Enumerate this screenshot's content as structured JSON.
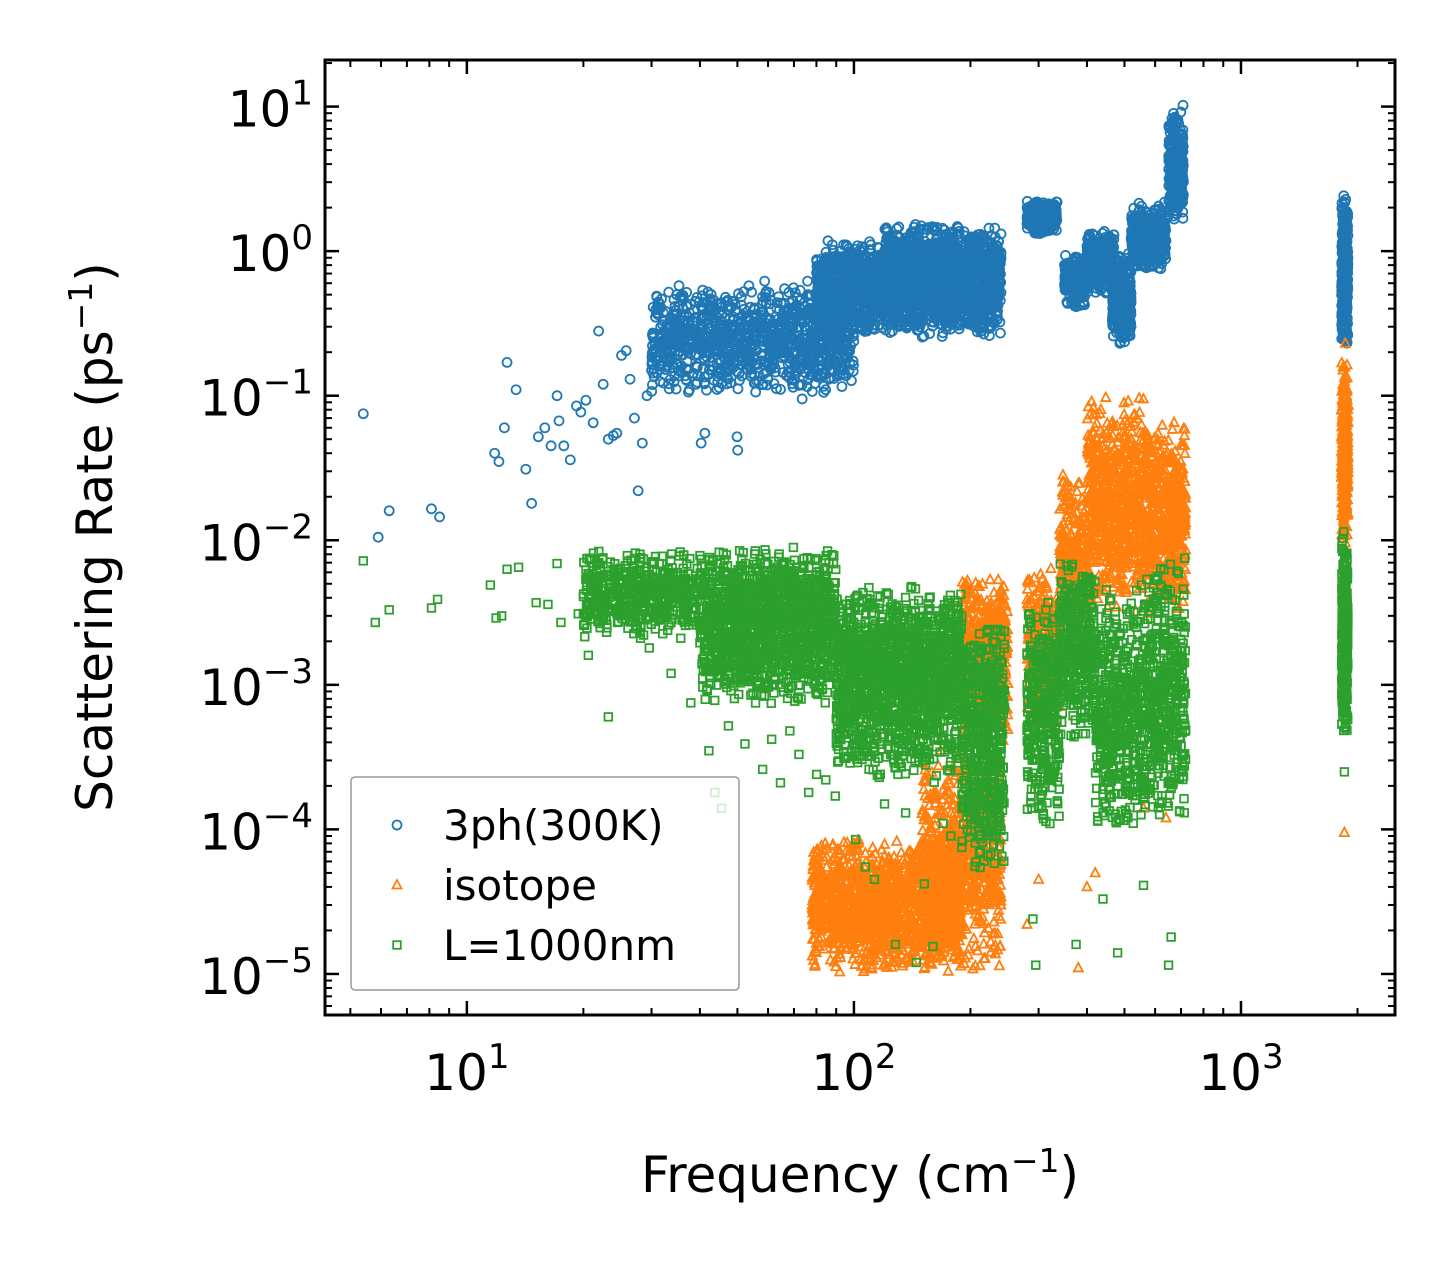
{
  "chart_data": {
    "type": "scatter",
    "xscale": "log",
    "yscale": "log",
    "xlim": [
      4.3,
      2500
    ],
    "ylim": [
      5.2e-06,
      21
    ],
    "xlabel": {
      "base": "Frequency (cm",
      "sup": "−1",
      "tail": ")"
    },
    "ylabel": {
      "base": "Scattering Rate (ps",
      "sup": "−1",
      "tail": ")"
    },
    "xticks": [
      {
        "value": 10,
        "base": "10",
        "exp": "1"
      },
      {
        "value": 100,
        "base": "10",
        "exp": "2"
      },
      {
        "value": 1000,
        "base": "10",
        "exp": "3"
      }
    ],
    "yticks": [
      {
        "value": 10,
        "base": "10",
        "exp": "1"
      },
      {
        "value": 1,
        "base": "10",
        "exp": "0"
      },
      {
        "value": 0.1,
        "base": "10",
        "exp": "−1"
      },
      {
        "value": 0.01,
        "base": "10",
        "exp": "−2"
      },
      {
        "value": 0.001,
        "base": "10",
        "exp": "−3"
      },
      {
        "value": 0.0001,
        "base": "10",
        "exp": "−4"
      },
      {
        "value": 1e-05,
        "base": "10",
        "exp": "−5"
      }
    ],
    "legend_position": "lower-left",
    "series": [
      {
        "name": "3ph(300K)",
        "marker": "circle",
        "color": "#1f77b4",
        "points": [
          [
            5.4,
            0.075
          ],
          [
            5.9,
            0.0105
          ],
          [
            6.3,
            0.016
          ],
          [
            8.1,
            0.0165
          ],
          [
            8.5,
            0.0145
          ],
          [
            11.8,
            0.04
          ],
          [
            12.1,
            0.035
          ],
          [
            12.5,
            0.06
          ],
          [
            12.7,
            0.17
          ],
          [
            13.4,
            0.11
          ],
          [
            14.2,
            0.031
          ],
          [
            14.7,
            0.018
          ],
          [
            15.3,
            0.052
          ],
          [
            15.9,
            0.06
          ],
          [
            16.5,
            0.045
          ],
          [
            17.1,
            0.1
          ],
          [
            17.3,
            0.067
          ],
          [
            17.8,
            0.045
          ],
          [
            18.5,
            0.036
          ],
          [
            19.2,
            0.085
          ],
          [
            19.7,
            0.077
          ],
          [
            20.3,
            0.093
          ],
          [
            21.2,
            0.065
          ],
          [
            21.9,
            0.28
          ],
          [
            22.5,
            0.12
          ],
          [
            23.2,
            0.05
          ],
          [
            23.9,
            0.053
          ],
          [
            24.4,
            0.055
          ],
          [
            25.1,
            0.19
          ],
          [
            25.8,
            0.205
          ],
          [
            26.4,
            0.13
          ],
          [
            27.1,
            0.07
          ],
          [
            27.7,
            0.022
          ],
          [
            28.4,
            0.047
          ],
          [
            29.2,
            0.1
          ],
          [
            30,
            0.15
          ],
          [
            31.5,
            0.16
          ],
          [
            32.4,
            0.24
          ],
          [
            33.3,
            0.17
          ],
          [
            34.5,
            0.31
          ],
          [
            35.2,
            0.15
          ],
          [
            36.1,
            0.4
          ],
          [
            37.4,
            0.32
          ],
          [
            38.6,
            0.28
          ],
          [
            39.1,
            0.12
          ],
          [
            40.3,
            0.047
          ],
          [
            41.2,
            0.055
          ],
          [
            41.9,
            0.2
          ],
          [
            43.5,
            0.38
          ],
          [
            45.7,
            0.27
          ],
          [
            47.3,
            0.13
          ],
          [
            48.5,
            0.45
          ],
          [
            49.9,
            0.052
          ],
          [
            50.1,
            0.042
          ],
          [
            52.6,
            0.35
          ],
          [
            54.4,
            0.52
          ],
          [
            57.1,
            0.29
          ],
          [
            58.8,
            0.62
          ],
          [
            61.5,
            0.16
          ],
          [
            63.4,
            0.44
          ],
          [
            66.2,
            0.55
          ],
          [
            68.8,
            0.32
          ],
          [
            71.2,
            0.22
          ],
          [
            73.5,
            0.095
          ],
          [
            75.9,
            0.62
          ],
          [
            79.3,
            0.15
          ],
          [
            82.7,
            0.34
          ],
          [
            86.1,
            0.13
          ],
          [
            89.4,
            0.71
          ],
          [
            93.2,
            0.48
          ],
          [
            97.4,
            0.27
          ],
          [
            101,
            1.03
          ],
          [
            105,
            0.65
          ],
          [
            108,
            0.28
          ],
          [
            113,
            0.92
          ],
          [
            117,
            0.44
          ],
          [
            121,
            1.15
          ],
          [
            126,
            0.61
          ],
          [
            131,
            0.33
          ],
          [
            137,
            0.82
          ],
          [
            142,
            1.22
          ],
          [
            148,
            0.52
          ],
          [
            154,
            0.39
          ],
          [
            161,
            1.46
          ],
          [
            168,
            0.71
          ],
          [
            173,
            0.55
          ],
          [
            179,
            0.95
          ],
          [
            185,
            1.48
          ],
          [
            192,
            0.63
          ],
          [
            199,
            0.84
          ],
          [
            206,
            0.42
          ],
          [
            214,
            1.27
          ],
          [
            222,
            0.74
          ],
          [
            229,
            0.58
          ],
          [
            234,
            1.08
          ]
        ],
        "clusters": [
          {
            "xmin": 30,
            "xmax": 100,
            "ymin": 0.1,
            "ymax": 0.6,
            "n": 1100
          },
          {
            "xmin": 80,
            "xmax": 240,
            "ymin": 0.25,
            "ymax": 1.2,
            "n": 1800
          },
          {
            "xmin": 120,
            "xmax": 240,
            "ymin": 0.5,
            "ymax": 1.6,
            "n": 600
          },
          {
            "xmin": 280,
            "xmax": 335,
            "ymin": 1.3,
            "ymax": 2.3,
            "n": 320
          },
          {
            "xmin": 350,
            "xmax": 395,
            "ymin": 0.4,
            "ymax": 1.0,
            "n": 220
          },
          {
            "xmin": 400,
            "xmax": 470,
            "ymin": 0.5,
            "ymax": 1.4,
            "n": 320
          },
          {
            "xmin": 465,
            "xmax": 520,
            "ymin": 0.22,
            "ymax": 1.0,
            "n": 320
          },
          {
            "xmin": 520,
            "xmax": 640,
            "ymin": 0.7,
            "ymax": 2.2,
            "n": 420
          },
          {
            "xmin": 650,
            "xmax": 710,
            "ymin": 1.5,
            "ymax": 10.5,
            "n": 320
          },
          {
            "xmin": 1820,
            "xmax": 1890,
            "ymin": 0.2,
            "ymax": 2.5,
            "n": 320
          }
        ]
      },
      {
        "name": "isotope",
        "marker": "triangle",
        "color": "#ff7f0e",
        "points": [
          [
            100,
            8e-05
          ],
          [
            1850,
            9.5e-05
          ],
          [
            1860,
            0.23
          ],
          [
            280,
            2.2e-05
          ],
          [
            300,
            4.5e-05
          ],
          [
            380,
            1.1e-05
          ],
          [
            420,
            5e-05
          ],
          [
            560,
            0.00014
          ],
          [
            640,
            0.00012
          ],
          [
            400,
            4e-05
          ]
        ],
        "clusters": [
          {
            "xmin": 78,
            "xmax": 190,
            "ymin": 1e-05,
            "ymax": 9e-05,
            "n": 1400
          },
          {
            "xmin": 150,
            "xmax": 240,
            "ymin": 1e-05,
            "ymax": 0.0004,
            "n": 700
          },
          {
            "xmin": 190,
            "xmax": 250,
            "ymin": 0.0004,
            "ymax": 0.006,
            "n": 500
          },
          {
            "xmin": 280,
            "xmax": 340,
            "ymin": 0.0005,
            "ymax": 0.007,
            "n": 250
          },
          {
            "xmin": 340,
            "xmax": 400,
            "ymin": 0.002,
            "ymax": 0.03,
            "n": 250
          },
          {
            "xmin": 400,
            "xmax": 560,
            "ymin": 0.003,
            "ymax": 0.11,
            "n": 650
          },
          {
            "xmin": 560,
            "xmax": 720,
            "ymin": 0.003,
            "ymax": 0.07,
            "n": 500
          },
          {
            "xmin": 1820,
            "xmax": 1890,
            "ymin": 0.008,
            "ymax": 0.2,
            "n": 300
          }
        ]
      },
      {
        "name": "L=1000nm",
        "marker": "square",
        "color": "#2ca02c",
        "points": [
          [
            5.4,
            0.0072
          ],
          [
            5.8,
            0.0027
          ],
          [
            6.3,
            0.0033
          ],
          [
            8.1,
            0.0034
          ],
          [
            8.4,
            0.0039
          ],
          [
            11.5,
            0.0049
          ],
          [
            11.9,
            0.0029
          ],
          [
            12.3,
            0.003
          ],
          [
            12.7,
            0.0063
          ],
          [
            13.6,
            0.0065
          ],
          [
            15.1,
            0.0037
          ],
          [
            16.2,
            0.0036
          ],
          [
            17.1,
            0.0069
          ],
          [
            17.5,
            0.0027
          ],
          [
            19.4,
            0.0031
          ],
          [
            20.6,
            0.0016
          ],
          [
            23.2,
            0.0006
          ],
          [
            24.5,
            0.0027
          ],
          [
            25.9,
            0.0033
          ],
          [
            28.1,
            0.0021
          ],
          [
            29.6,
            0.0018
          ],
          [
            31.4,
            0.0069
          ],
          [
            33.7,
            0.0012
          ],
          [
            35.7,
            0.0021
          ],
          [
            37.9,
            0.00075
          ],
          [
            40.3,
            0.0026
          ],
          [
            42.2,
            0.00035
          ],
          [
            43.7,
            0.00018
          ],
          [
            45.5,
            0.00014
          ],
          [
            47.4,
            0.00052
          ],
          [
            49.6,
            0.0021
          ],
          [
            52.3,
            0.00039
          ],
          [
            55.3,
            0.0034
          ],
          [
            58.1,
            0.00026
          ],
          [
            61.3,
            0.00042
          ],
          [
            64.6,
            0.00021
          ],
          [
            68.3,
            0.00048
          ],
          [
            72.1,
            0.00033
          ],
          [
            76.4,
            0.00018
          ],
          [
            80.1,
            0.00024
          ],
          [
            84.6,
            0.00022
          ],
          [
            89.5,
            0.00017
          ],
          [
            95.3,
            0.00031
          ],
          [
            101,
            8.5e-05
          ],
          [
            107,
            5.5e-05
          ],
          [
            113,
            4.5e-05
          ],
          [
            120,
            0.00015
          ],
          [
            128,
            1.6e-05
          ],
          [
            136,
            0.00013
          ],
          [
            145,
            1.2e-05
          ],
          [
            152,
            4.2e-05
          ],
          [
            160,
            1.55e-05
          ],
          [
            170,
            0.00011
          ],
          [
            178,
            9e-05
          ],
          [
            190,
            7.5e-05
          ],
          [
            205,
            0.00011
          ],
          [
            215,
            0.00013
          ],
          [
            290,
            2.4e-05
          ],
          [
            295,
            1.15e-05
          ],
          [
            375,
            1.6e-05
          ],
          [
            440,
            3.3e-05
          ],
          [
            480,
            1.4e-05
          ],
          [
            560,
            4.1e-05
          ],
          [
            650,
            1.15e-05
          ],
          [
            660,
            1.8e-05
          ],
          [
            1850,
            0.00025
          ]
        ],
        "clusters": [
          {
            "xmin": 20,
            "xmax": 90,
            "ymin": 0.002,
            "ymax": 0.009,
            "n": 1100
          },
          {
            "xmin": 40,
            "xmax": 190,
            "ymin": 0.0007,
            "ymax": 0.005,
            "n": 1500
          },
          {
            "xmin": 90,
            "xmax": 245,
            "ymin": 0.0002,
            "ymax": 0.003,
            "n": 1200
          },
          {
            "xmin": 190,
            "xmax": 245,
            "ymin": 5e-05,
            "ymax": 0.0008,
            "n": 250
          },
          {
            "xmin": 280,
            "xmax": 340,
            "ymin": 0.0001,
            "ymax": 0.004,
            "n": 350
          },
          {
            "xmin": 340,
            "xmax": 420,
            "ymin": 0.0004,
            "ymax": 0.008,
            "n": 350
          },
          {
            "xmin": 420,
            "xmax": 560,
            "ymin": 8e-05,
            "ymax": 0.005,
            "n": 500
          },
          {
            "xmin": 560,
            "xmax": 720,
            "ymin": 0.0001,
            "ymax": 0.008,
            "n": 450
          },
          {
            "xmin": 1820,
            "xmax": 1890,
            "ymin": 0.0004,
            "ymax": 0.012,
            "n": 300
          }
        ]
      }
    ]
  }
}
